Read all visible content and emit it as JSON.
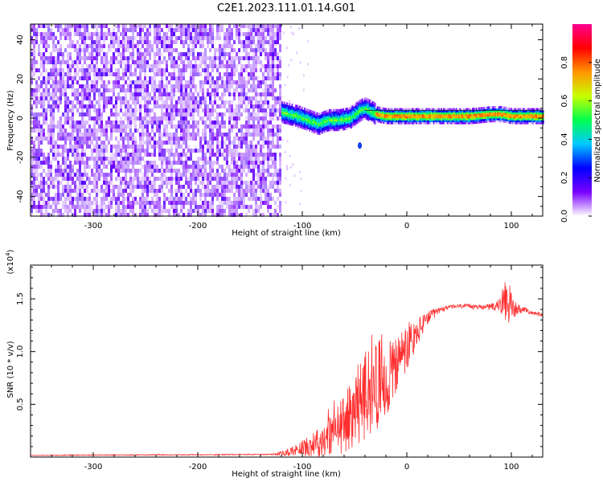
{
  "figure": {
    "title": "C2E1.2023.111.01.14.G01"
  },
  "chart_data": [
    {
      "type": "heatmap",
      "xlabel": "Height of straight line (km)",
      "ylabel": "Frequency (Hz)",
      "xlim": [
        -360,
        130
      ],
      "ylim": [
        -50,
        48
      ],
      "xticks": [
        -300,
        -200,
        -100,
        0,
        100
      ],
      "yticks": [
        -40,
        -20,
        0,
        20,
        40
      ],
      "noise_region_x": [
        -360,
        -120
      ],
      "signal_region_x": [
        -120,
        130
      ],
      "signal_trace": {
        "x": [
          -120,
          -105,
          -95,
          -85,
          -75,
          -65,
          -55,
          -45,
          -40,
          -30,
          -20,
          -10,
          0,
          20,
          40,
          60,
          80,
          90,
          100,
          110,
          130
        ],
        "y": [
          3,
          1,
          -1,
          -3,
          -1,
          -1,
          0,
          4,
          5,
          2,
          1,
          1,
          1,
          1,
          1,
          1,
          2,
          2,
          1,
          1,
          1
        ]
      },
      "stray_point": {
        "x": -45,
        "y": -14
      },
      "colorbar": {
        "label": "Normalized spectral amplitude",
        "ticks": [
          0.0,
          0.2,
          0.4,
          0.6,
          0.8
        ],
        "range": [
          0,
          1
        ],
        "colors": [
          "#ffffff",
          "#7a00ff",
          "#0000ff",
          "#00c8ff",
          "#00ff50",
          "#c8ff00",
          "#ff9600",
          "#ff0000",
          "#ff0090"
        ]
      },
      "grid": false,
      "legend": "none"
    },
    {
      "type": "line",
      "xlabel": "Height of straight line (km)",
      "ylabel": "SNR (10 * v/v)",
      "y_multiplier": "(x10",
      "y_multiplier_exp": "4",
      "y_multiplier_close": ")",
      "xlim": [
        -360,
        130
      ],
      "ylim": [
        0,
        18200
      ],
      "xticks": [
        -300,
        -200,
        -100,
        0,
        100
      ],
      "yticks": [
        5000,
        10000,
        15000
      ],
      "ytick_labels": [
        "0.5",
        "1.0",
        "1.5"
      ],
      "series": [
        {
          "color": "#ff3030",
          "x": [
            -360,
            -300,
            -200,
            -130,
            -115,
            -100,
            -90,
            -80,
            -70,
            -60,
            -50,
            -40,
            -30,
            -20,
            -10,
            0,
            10,
            20,
            30,
            40,
            50,
            60,
            70,
            80,
            90,
            95,
            100,
            105,
            110,
            120,
            130
          ],
          "y": [
            150,
            200,
            220,
            260,
            400,
            900,
            1200,
            1700,
            2400,
            3100,
            4600,
            5800,
            6800,
            7600,
            8500,
            10200,
            11800,
            13200,
            13900,
            14200,
            14300,
            14300,
            14200,
            14300,
            14400,
            14600,
            14200,
            14100,
            14000,
            13700,
            13400
          ],
          "noise_amp": [
            40,
            40,
            40,
            50,
            300,
            700,
            1200,
            1600,
            2200,
            2800,
            3500,
            4200,
            4200,
            3800,
            3200,
            2500,
            1500,
            600,
            300,
            200,
            200,
            200,
            200,
            250,
            800,
            1800,
            1600,
            600,
            300,
            200,
            200
          ]
        }
      ],
      "grid": false,
      "legend": "none"
    }
  ]
}
